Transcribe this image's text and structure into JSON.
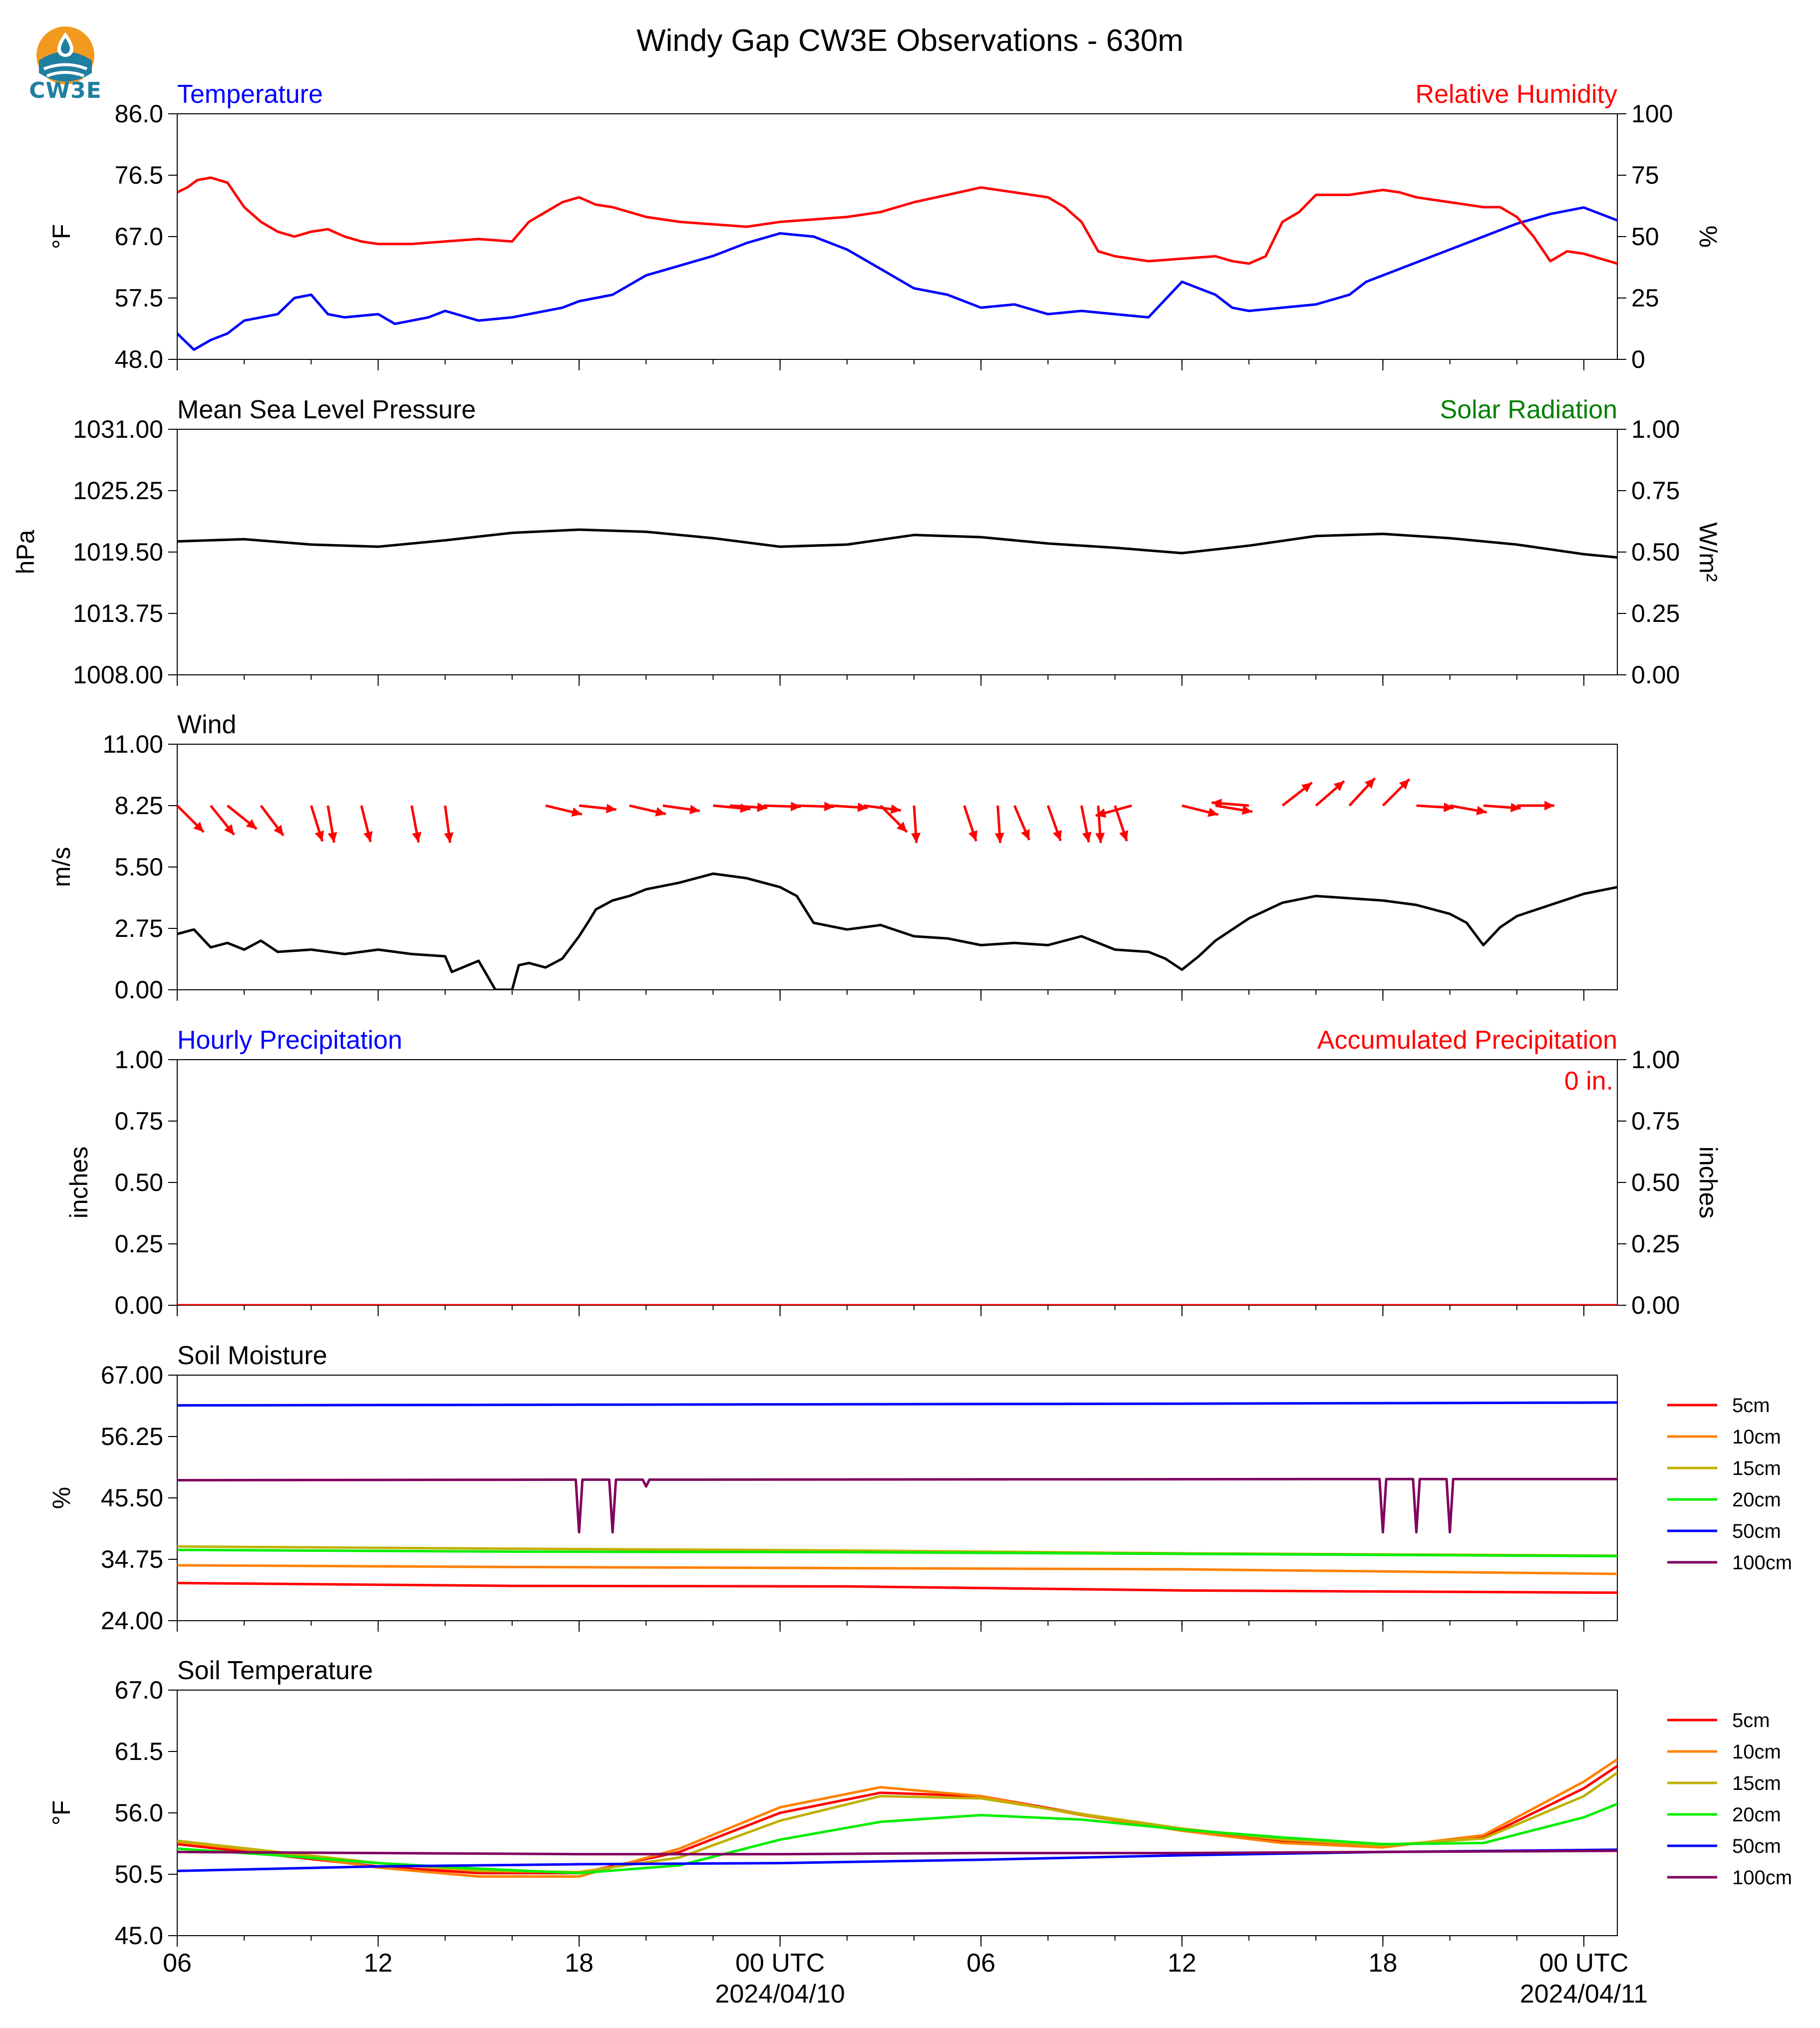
{
  "title": "Windy Gap CW3E Observations - 630m",
  "logo": {
    "text": "CW3E"
  },
  "colors": {
    "blue": "#0000ff",
    "red": "#ff0000",
    "green": "#008000",
    "black": "#000000"
  },
  "time_axis": {
    "tick_labels": [
      "06",
      "12",
      "18",
      "00 UTC",
      "06",
      "12",
      "18",
      "00 UTC"
    ],
    "tick_hours": [
      0,
      6,
      12,
      18,
      24,
      30,
      36,
      42
    ],
    "date_labels": [
      {
        "hour": 18,
        "text": "2024/04/10"
      },
      {
        "hour": 42,
        "text": "2024/04/11"
      }
    ],
    "range_hours": [
      0,
      43
    ]
  },
  "chart_data": [
    {
      "type": "line",
      "left_title": "Temperature",
      "right_title": "Relative Humidity",
      "ylabel": "°F",
      "y2label": "%",
      "ylim": [
        48.0,
        86.0
      ],
      "y2lim": [
        0,
        100
      ],
      "yticks": [
        "86.0",
        "76.5",
        "67.0",
        "57.5",
        "48.0"
      ],
      "y2ticks": [
        "100",
        "75",
        "50",
        "25",
        "0"
      ],
      "series": [
        {
          "name": "Temperature",
          "axis": "left",
          "color": "#0000ff",
          "x": [
            0,
            0.5,
            1,
            1.5,
            2,
            3,
            3.5,
            4,
            4.5,
            5,
            6,
            6.5,
            7,
            7.5,
            8,
            9,
            10,
            11,
            11.5,
            12,
            13,
            14,
            15,
            16,
            17,
            18,
            19,
            20,
            21,
            22,
            23,
            24,
            25,
            26,
            27,
            28,
            29,
            30,
            30.5,
            31,
            31.5,
            32,
            33,
            34,
            35,
            35.5,
            36,
            37,
            38,
            39,
            40,
            41,
            42,
            43
          ],
          "y": [
            52,
            49.5,
            51,
            52,
            54,
            55,
            57.5,
            58,
            55,
            54.5,
            55,
            53.5,
            54,
            54.5,
            55.5,
            54,
            54.5,
            55.5,
            56,
            57,
            58,
            61,
            62.5,
            64,
            66,
            67.5,
            67,
            65,
            62,
            59,
            58,
            56,
            56.5,
            55,
            55.5,
            55,
            54.5,
            60,
            59,
            58,
            56,
            55.5,
            56,
            56.5,
            58,
            60,
            61,
            63,
            65,
            67,
            69,
            70.5,
            71.5,
            69.5
          ]
        },
        {
          "name": "Relative Humidity",
          "axis": "right",
          "color": "#ff0000",
          "x": [
            0,
            0.3,
            0.6,
            1,
            1.5,
            2,
            2.5,
            3,
            3.5,
            4,
            4.5,
            5,
            5.5,
            6,
            7,
            8,
            9,
            10,
            10.5,
            11,
            11.5,
            12,
            12.5,
            13,
            14,
            15,
            16,
            17,
            18,
            19,
            20,
            21,
            22,
            23,
            24,
            25,
            26,
            26.5,
            27,
            27.5,
            28,
            29,
            30,
            31,
            31.5,
            32,
            32.5,
            33,
            33.5,
            34,
            35,
            36,
            36.5,
            37,
            38,
            39,
            39.5,
            40,
            40.5,
            41,
            41.5,
            42,
            43
          ],
          "y": [
            68,
            70,
            73,
            74,
            72,
            62,
            56,
            52,
            50,
            52,
            53,
            50,
            48,
            47,
            47,
            48,
            49,
            48,
            56,
            60,
            64,
            66,
            63,
            62,
            58,
            56,
            55,
            54,
            56,
            57,
            58,
            60,
            64,
            67,
            70,
            68,
            66,
            62,
            56,
            44,
            42,
            40,
            41,
            42,
            40,
            39,
            42,
            56,
            60,
            67,
            67,
            69,
            68,
            66,
            64,
            62,
            62,
            58,
            50,
            40,
            44,
            43,
            39
          ]
        }
      ]
    },
    {
      "type": "line",
      "left_title": "Mean Sea Level Pressure",
      "right_title": "Solar Radiation",
      "ylabel": "hPa",
      "y2label": "W/m²",
      "ylim": [
        1008.0,
        1031.0
      ],
      "y2lim": [
        0.0,
        1.0
      ],
      "yticks": [
        "1031.00",
        "1025.25",
        "1019.50",
        "1013.75",
        "1008.00"
      ],
      "y2ticks": [
        "1.00",
        "0.75",
        "0.50",
        "0.25",
        "0.00"
      ],
      "series": [
        {
          "name": "Mean Sea Level Pressure",
          "axis": "left",
          "color": "#000000",
          "x": [
            0,
            2,
            4,
            6,
            8,
            10,
            12,
            14,
            16,
            18,
            20,
            22,
            24,
            26,
            28,
            30,
            32,
            34,
            36,
            38,
            40,
            42,
            43
          ],
          "y": [
            1020.5,
            1020.7,
            1020.2,
            1020.0,
            1020.6,
            1021.3,
            1021.6,
            1021.4,
            1020.8,
            1020.0,
            1020.2,
            1021.1,
            1020.9,
            1020.3,
            1019.9,
            1019.4,
            1020.1,
            1021.0,
            1021.2,
            1020.8,
            1020.2,
            1019.3,
            1019.0
          ]
        }
      ]
    },
    {
      "type": "line",
      "left_title": "Wind",
      "ylabel": "m/s",
      "ylim": [
        0.0,
        11.0
      ],
      "yticks": [
        "11.00",
        "8.25",
        "5.50",
        "2.75",
        "0.00"
      ],
      "series": [
        {
          "name": "Wind",
          "axis": "left",
          "color": "#000000",
          "x": [
            0,
            0.5,
            1,
            1.5,
            2,
            2.5,
            3,
            4,
            5,
            6,
            7,
            8,
            8.2,
            9,
            9.5,
            10,
            10.2,
            10.5,
            11,
            11.5,
            12,
            12.3,
            12.5,
            13,
            13.5,
            14,
            15,
            16,
            17,
            18,
            18.5,
            19,
            20,
            21,
            22,
            23,
            24,
            25,
            26,
            27,
            28,
            29,
            29.5,
            30,
            30.5,
            31,
            32,
            33,
            34,
            35,
            36,
            37,
            38,
            38.5,
            39,
            39.5,
            40,
            41,
            42,
            43
          ],
          "y": [
            2.5,
            2.7,
            1.9,
            2.1,
            1.8,
            2.2,
            1.7,
            1.8,
            1.6,
            1.8,
            1.6,
            1.5,
            0.8,
            1.3,
            0.0,
            0.0,
            1.1,
            1.2,
            1.0,
            1.4,
            2.4,
            3.1,
            3.6,
            4.0,
            4.2,
            4.5,
            4.8,
            5.2,
            5.0,
            4.6,
            4.2,
            3.0,
            2.7,
            2.9,
            2.4,
            2.3,
            2.0,
            2.1,
            2.0,
            2.4,
            1.8,
            1.7,
            1.4,
            0.9,
            1.5,
            2.2,
            3.2,
            3.9,
            4.2,
            4.1,
            4.0,
            3.8,
            3.4,
            3.0,
            2.0,
            2.8,
            3.3,
            3.8,
            4.3,
            4.6
          ]
        },
        {
          "name": "Wind direction",
          "type": "quiver",
          "color": "#ff0000",
          "x": [
            0,
            1,
            1.5,
            2.5,
            4,
            4.5,
            5.5,
            7,
            8,
            11,
            12,
            13.5,
            14.5,
            16,
            16.5,
            17.5,
            18.5,
            19.5,
            20.5,
            21,
            22,
            23.5,
            24.5,
            25,
            26,
            27,
            27.5,
            28,
            28.5,
            30,
            31,
            32,
            33,
            34,
            35,
            36,
            37,
            38,
            39,
            40
          ],
          "ucomp": [
            1.5,
            1.2,
            1.5,
            1.2,
            0.5,
            0.3,
            0.4,
            0.3,
            0.2,
            2.5,
            2.8,
            2.6,
            2.8,
            3.2,
            3.2,
            3.2,
            3.2,
            3.2,
            3.1,
            1.5,
            0.1,
            0.5,
            0.1,
            0.6,
            0.5,
            0.3,
            0.1,
            0.5,
            -1.8,
            2.4,
            1.8,
            -2.5,
            1.8,
            1.5,
            1.3,
            1.4,
            3.2,
            2.2,
            2.8,
            3.2
          ],
          "vcomp": [
            -1.5,
            -1.5,
            -1.2,
            -1.6,
            -1.6,
            -1.8,
            -1.6,
            -1.6,
            -1.5,
            -0.6,
            -0.3,
            -0.6,
            -0.4,
            -0.3,
            -0.2,
            -0.1,
            -0.1,
            -0.2,
            -0.4,
            -1.5,
            -1.5,
            -1.5,
            -1.5,
            -1.4,
            -1.4,
            -1.5,
            -1.5,
            -1.5,
            -0.5,
            -0.6,
            -0.3,
            0.2,
            1.4,
            1.3,
            1.4,
            1.4,
            -0.2,
            -0.4,
            -0.2,
            0.0
          ]
        }
      ]
    },
    {
      "type": "bar",
      "left_title": "Hourly Precipitation",
      "right_title": "Accumulated Precipitation",
      "ylabel": "inches",
      "y2label": "inches",
      "ylim": [
        0.0,
        1.0
      ],
      "y2lim": [
        0.0,
        1.0
      ],
      "yticks": [
        "1.00",
        "0.75",
        "0.50",
        "0.25",
        "0.00"
      ],
      "y2ticks": [
        "1.00",
        "0.75",
        "0.50",
        "0.25",
        "0.00"
      ],
      "annotation": "0 in.",
      "series": [
        {
          "name": "Hourly Precipitation",
          "axis": "left",
          "color": "#0000ff",
          "x": [
            0,
            43
          ],
          "y": [
            0,
            0
          ]
        },
        {
          "name": "Accumulated Precipitation",
          "axis": "right",
          "color": "#ff0000",
          "x": [
            0,
            43
          ],
          "y": [
            0,
            0
          ]
        }
      ]
    },
    {
      "type": "line",
      "left_title": "Soil Moisture",
      "ylabel": "%",
      "ylim": [
        24.0,
        67.0
      ],
      "yticks": [
        "67.00",
        "56.25",
        "45.50",
        "34.75",
        "24.00"
      ],
      "legend": [
        "5cm",
        "10cm",
        "15cm",
        "20cm",
        "50cm",
        "100cm"
      ],
      "series": [
        {
          "name": "5cm",
          "color": "#ff0000",
          "x": [
            0,
            10,
            20,
            30,
            43
          ],
          "y": [
            30.6,
            30.1,
            30.0,
            29.3,
            28.9
          ]
        },
        {
          "name": "10cm",
          "color": "#ff8000",
          "x": [
            0,
            10,
            20,
            30,
            43
          ],
          "y": [
            33.7,
            33.4,
            33.2,
            33.0,
            32.2
          ]
        },
        {
          "name": "15cm",
          "color": "#c0b000",
          "x": [
            0,
            10,
            20,
            30,
            43
          ],
          "y": [
            37.0,
            36.6,
            36.3,
            35.8,
            35.4
          ]
        },
        {
          "name": "20cm",
          "color": "#00ee00",
          "x": [
            0,
            10,
            20,
            30,
            43
          ],
          "y": [
            36.4,
            36.1,
            36.0,
            35.7,
            35.3
          ]
        },
        {
          "name": "50cm",
          "color": "#0000ff",
          "x": [
            0,
            10,
            20,
            30,
            43
          ],
          "y": [
            61.7,
            61.8,
            61.9,
            62.0,
            62.2
          ]
        },
        {
          "name": "100cm",
          "color": "#800060",
          "x": [
            0,
            11.9,
            12.0,
            12.1,
            12.9,
            13.0,
            13.1,
            13.9,
            14.0,
            14.1,
            35.9,
            36.0,
            36.1,
            36.9,
            37.0,
            37.1,
            37.9,
            38.0,
            38.1,
            43
          ],
          "y": [
            48.6,
            48.7,
            39.5,
            48.7,
            48.7,
            39.5,
            48.7,
            48.7,
            47.5,
            48.7,
            48.8,
            39.5,
            48.8,
            48.8,
            39.5,
            48.8,
            48.8,
            39.5,
            48.8,
            48.8
          ]
        }
      ]
    },
    {
      "type": "line",
      "left_title": "Soil Temperature",
      "ylabel": "°F",
      "ylim": [
        45.0,
        67.0
      ],
      "yticks": [
        "67.0",
        "61.5",
        "56.0",
        "50.5",
        "45.0"
      ],
      "legend": [
        "5cm",
        "10cm",
        "15cm",
        "20cm",
        "50cm",
        "100cm"
      ],
      "series": [
        {
          "name": "5cm",
          "color": "#ff0000",
          "x": [
            0,
            3,
            6,
            9,
            12,
            15,
            18,
            21,
            24,
            27,
            30,
            33,
            36,
            39,
            42,
            43
          ],
          "y": [
            53.2,
            52.2,
            51.2,
            50.6,
            50.6,
            52.5,
            56.0,
            57.8,
            57.5,
            55.9,
            54.5,
            53.5,
            53.0,
            53.8,
            58.2,
            60.2
          ]
        },
        {
          "name": "10cm",
          "color": "#ff8000",
          "x": [
            0,
            3,
            6,
            9,
            12,
            15,
            18,
            21,
            24,
            27,
            30,
            33,
            36,
            39,
            42,
            43
          ],
          "y": [
            53.4,
            52.4,
            51.1,
            50.3,
            50.3,
            52.8,
            56.5,
            58.3,
            57.5,
            55.8,
            54.4,
            53.3,
            52.9,
            54.0,
            58.8,
            60.8
          ]
        },
        {
          "name": "15cm",
          "color": "#c0b000",
          "x": [
            0,
            3,
            6,
            9,
            12,
            15,
            18,
            21,
            24,
            27,
            30,
            33,
            36,
            39,
            42,
            43
          ],
          "y": [
            53.5,
            52.5,
            51.5,
            50.8,
            50.7,
            52.0,
            55.3,
            57.5,
            57.3,
            55.9,
            54.6,
            53.6,
            53.1,
            53.7,
            57.5,
            59.6
          ]
        },
        {
          "name": "20cm",
          "color": "#00ee00",
          "x": [
            0,
            3,
            6,
            9,
            12,
            15,
            18,
            21,
            24,
            27,
            30,
            33,
            36,
            39,
            42,
            43
          ],
          "y": [
            52.8,
            52.2,
            51.5,
            51.0,
            50.6,
            51.3,
            53.6,
            55.2,
            55.8,
            55.4,
            54.5,
            53.8,
            53.2,
            53.3,
            55.6,
            56.8
          ]
        },
        {
          "name": "50cm",
          "color": "#0000ff",
          "x": [
            0,
            6,
            12,
            18,
            24,
            30,
            36,
            43
          ],
          "y": [
            50.8,
            51.2,
            51.4,
            51.5,
            51.8,
            52.2,
            52.5,
            52.7
          ]
        },
        {
          "name": "100cm",
          "color": "#800060",
          "x": [
            0,
            6,
            12,
            18,
            24,
            30,
            36,
            43
          ],
          "y": [
            52.5,
            52.4,
            52.3,
            52.3,
            52.4,
            52.4,
            52.5,
            52.6
          ]
        }
      ]
    }
  ]
}
